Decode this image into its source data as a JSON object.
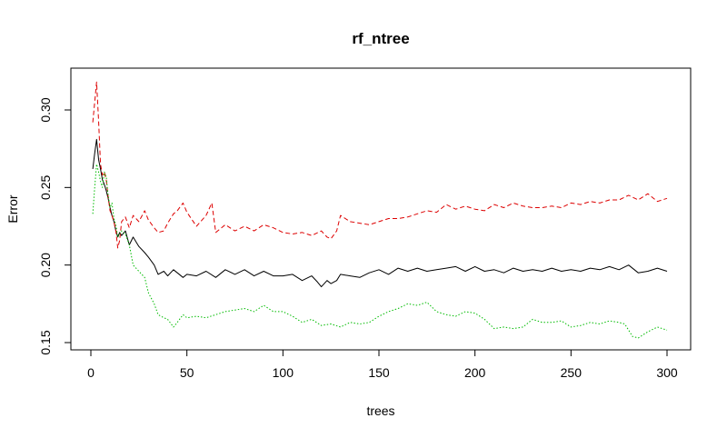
{
  "chart_data": {
    "type": "line",
    "title": "rf_ntree",
    "xlabel": "trees",
    "ylabel": "Error",
    "xlim": [
      0,
      300
    ],
    "ylim": [
      0.14,
      0.325
    ],
    "xticks": [
      0,
      50,
      100,
      150,
      200,
      250,
      300
    ],
    "yticks": [
      0.15,
      0.2,
      0.25,
      0.3
    ],
    "ytick_labels": [
      "0.15",
      "0.20",
      "0.25",
      "0.30"
    ],
    "grid": false,
    "legend": "none",
    "series": [
      {
        "color": "#000000",
        "linestyle": "solid",
        "x": [
          1,
          2,
          3,
          4,
          5,
          6,
          7,
          8,
          9,
          10,
          11,
          12,
          13,
          14,
          15,
          16,
          18,
          20,
          22,
          25,
          28,
          30,
          33,
          35,
          38,
          40,
          43,
          45,
          48,
          50,
          55,
          60,
          65,
          70,
          75,
          80,
          85,
          90,
          95,
          100,
          105,
          110,
          115,
          118,
          120,
          123,
          125,
          128,
          130,
          135,
          140,
          145,
          150,
          155,
          160,
          165,
          170,
          175,
          180,
          185,
          190,
          195,
          200,
          205,
          210,
          215,
          220,
          225,
          230,
          235,
          240,
          245,
          250,
          255,
          260,
          265,
          270,
          275,
          280,
          285,
          290,
          295,
          300
        ],
        "y": [
          0.262,
          0.272,
          0.281,
          0.268,
          0.262,
          0.255,
          0.252,
          0.248,
          0.243,
          0.237,
          0.232,
          0.228,
          0.222,
          0.218,
          0.221,
          0.219,
          0.222,
          0.213,
          0.218,
          0.212,
          0.208,
          0.205,
          0.2,
          0.194,
          0.196,
          0.193,
          0.197,
          0.195,
          0.192,
          0.194,
          0.193,
          0.196,
          0.192,
          0.197,
          0.194,
          0.197,
          0.193,
          0.196,
          0.193,
          0.193,
          0.194,
          0.19,
          0.193,
          0.189,
          0.186,
          0.19,
          0.188,
          0.19,
          0.194,
          0.193,
          0.192,
          0.195,
          0.197,
          0.194,
          0.198,
          0.196,
          0.198,
          0.196,
          0.197,
          0.198,
          0.199,
          0.196,
          0.199,
          0.196,
          0.197,
          0.195,
          0.198,
          0.196,
          0.197,
          0.196,
          0.198,
          0.196,
          0.197,
          0.196,
          0.198,
          0.197,
          0.199,
          0.197,
          0.2,
          0.195,
          0.196,
          0.198,
          0.196
        ]
      },
      {
        "color": "#dd0000",
        "linestyle": "dashed",
        "x": [
          1,
          2,
          3,
          4,
          5,
          6,
          7,
          8,
          9,
          10,
          11,
          12,
          13,
          14,
          15,
          16,
          18,
          20,
          22,
          25,
          28,
          30,
          33,
          35,
          38,
          40,
          43,
          45,
          48,
          50,
          55,
          60,
          63,
          65,
          70,
          75,
          80,
          85,
          90,
          95,
          100,
          105,
          110,
          115,
          120,
          123,
          125,
          128,
          130,
          135,
          140,
          145,
          150,
          155,
          160,
          165,
          170,
          175,
          180,
          185,
          190,
          195,
          200,
          205,
          210,
          215,
          220,
          225,
          230,
          235,
          240,
          245,
          250,
          255,
          260,
          265,
          270,
          275,
          280,
          285,
          290,
          295,
          300
        ],
        "y": [
          0.292,
          0.305,
          0.318,
          0.293,
          0.265,
          0.258,
          0.26,
          0.255,
          0.244,
          0.235,
          0.232,
          0.228,
          0.222,
          0.211,
          0.216,
          0.228,
          0.231,
          0.224,
          0.232,
          0.228,
          0.235,
          0.229,
          0.224,
          0.221,
          0.222,
          0.227,
          0.233,
          0.235,
          0.24,
          0.234,
          0.225,
          0.232,
          0.24,
          0.221,
          0.226,
          0.222,
          0.225,
          0.222,
          0.226,
          0.224,
          0.221,
          0.22,
          0.221,
          0.219,
          0.222,
          0.218,
          0.217,
          0.222,
          0.232,
          0.228,
          0.227,
          0.226,
          0.228,
          0.23,
          0.23,
          0.231,
          0.233,
          0.235,
          0.234,
          0.239,
          0.236,
          0.238,
          0.236,
          0.235,
          0.239,
          0.237,
          0.24,
          0.238,
          0.237,
          0.237,
          0.238,
          0.237,
          0.24,
          0.239,
          0.241,
          0.24,
          0.242,
          0.242,
          0.245,
          0.242,
          0.246,
          0.241,
          0.243
        ]
      },
      {
        "color": "#00bb00",
        "linestyle": "dotted",
        "x": [
          1,
          2,
          3,
          4,
          5,
          6,
          7,
          8,
          9,
          10,
          11,
          12,
          13,
          14,
          15,
          16,
          18,
          20,
          22,
          25,
          28,
          30,
          33,
          35,
          38,
          40,
          43,
          45,
          48,
          50,
          55,
          60,
          65,
          70,
          75,
          80,
          85,
          90,
          95,
          100,
          105,
          110,
          115,
          120,
          125,
          130,
          135,
          140,
          145,
          150,
          155,
          160,
          165,
          170,
          175,
          180,
          185,
          190,
          195,
          200,
          205,
          210,
          215,
          220,
          225,
          230,
          235,
          240,
          245,
          250,
          255,
          260,
          265,
          270,
          275,
          278,
          282,
          285,
          290,
          295,
          300
        ],
        "y": [
          0.233,
          0.25,
          0.265,
          0.26,
          0.254,
          0.25,
          0.26,
          0.257,
          0.245,
          0.237,
          0.24,
          0.23,
          0.226,
          0.218,
          0.22,
          0.222,
          0.22,
          0.213,
          0.2,
          0.196,
          0.192,
          0.182,
          0.175,
          0.168,
          0.166,
          0.165,
          0.16,
          0.163,
          0.168,
          0.166,
          0.167,
          0.166,
          0.168,
          0.17,
          0.171,
          0.172,
          0.17,
          0.174,
          0.17,
          0.17,
          0.167,
          0.163,
          0.165,
          0.161,
          0.162,
          0.16,
          0.163,
          0.162,
          0.163,
          0.167,
          0.17,
          0.172,
          0.175,
          0.174,
          0.176,
          0.17,
          0.168,
          0.167,
          0.17,
          0.169,
          0.165,
          0.159,
          0.16,
          0.159,
          0.16,
          0.165,
          0.163,
          0.163,
          0.164,
          0.16,
          0.161,
          0.163,
          0.162,
          0.164,
          0.163,
          0.162,
          0.154,
          0.153,
          0.157,
          0.16,
          0.158
        ]
      }
    ]
  }
}
